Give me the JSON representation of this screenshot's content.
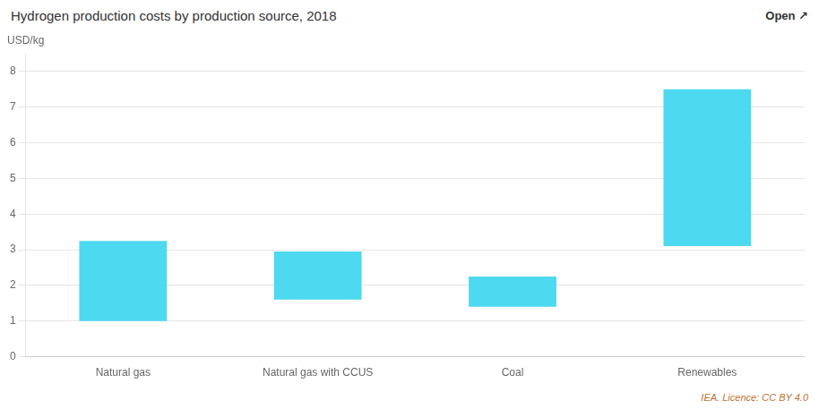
{
  "chart_data": {
    "type": "bar",
    "title": "Hydrogen production costs by production source, 2018",
    "ylabel": "USD/kg",
    "categories": [
      "Natural gas",
      "Natural gas with CCUS",
      "Coal",
      "Renewables"
    ],
    "values": [
      [
        1.0,
        3.25
      ],
      [
        1.6,
        2.95
      ],
      [
        1.4,
        2.25
      ],
      [
        3.1,
        7.5
      ]
    ],
    "color": "#4DD9F0",
    "ylim": [
      0,
      8.5
    ],
    "yticks": [
      0,
      1,
      2,
      3,
      4,
      5,
      6,
      7,
      8
    ],
    "grid": true,
    "annotations": [
      "Open ↗",
      "IEA. Licence: CC BY 4.0"
    ]
  }
}
